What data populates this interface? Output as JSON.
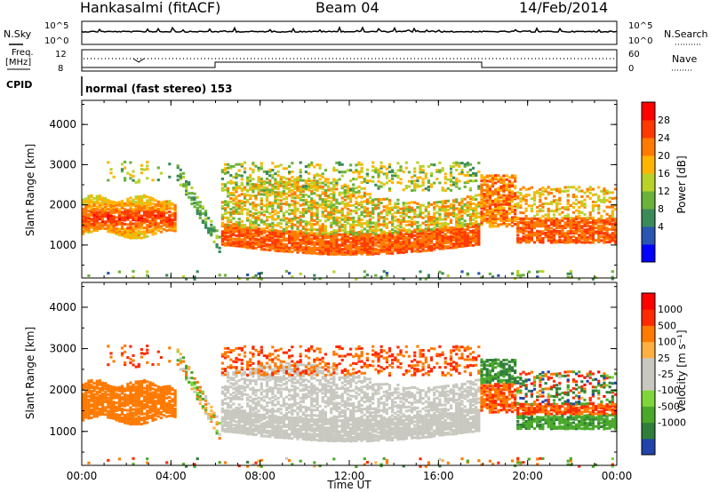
{
  "header": {
    "station": "Hankasalmi (fitACF)",
    "beam": "Beam 04",
    "date": "14/Feb/2014"
  },
  "top_panels": {
    "nsky_label": "N.Sky",
    "nsky_ticks": [
      "10^5",
      "10^0"
    ],
    "nsearch_label": "N.Search",
    "nsearch_ticks": [
      "10^5",
      "10^0"
    ],
    "freq_label_1": "Freq.",
    "freq_label_2": "[MHz]",
    "freq_ticks": [
      "12",
      "8"
    ],
    "nave_label": "Nave",
    "nave_ticks": [
      "60",
      "0"
    ],
    "cpid_label": "CPID",
    "cpid_text": "normal (fast stereo) 153"
  },
  "chart_data": [
    {
      "type": "heatmap",
      "name": "power-panel",
      "ylabel": "Slant Range [km]",
      "yticks": [
        "4000",
        "3000",
        "2000",
        "1000"
      ],
      "ylim": [
        180,
        4600
      ],
      "xticks": [
        "00:00",
        "04:00",
        "08:00",
        "12:00",
        "16:00",
        "20:00",
        "00:00"
      ],
      "xlim_hours": [
        0,
        24
      ],
      "colorbar_label": "Power [dB]",
      "colorbar_ticks": [
        "28",
        "24",
        "20",
        "16",
        "12",
        "8",
        "4"
      ],
      "colorbar_colors": [
        "#0000ff",
        "#2a55b0",
        "#3a8a5a",
        "#6ab23a",
        "#b8d22a",
        "#ffb400",
        "#ff7a00",
        "#ff3a00",
        "#ff0000"
      ],
      "features": [
        {
          "label": "morning F-region echoes",
          "t0": 0,
          "t1": 4.2,
          "r0": 1300,
          "r1": 2300,
          "power_db": 24
        },
        {
          "label": "dusk sloping streak",
          "t0": 4.4,
          "t1": 6.2,
          "r0": 900,
          "r1": 3000,
          "power_db": 12
        },
        {
          "label": "main band",
          "t0": 6.2,
          "t1": 17.8,
          "r0": 800,
          "r1": 3000,
          "power_db": 22
        },
        {
          "label": "evening patch",
          "t0": 17.8,
          "t1": 19.5,
          "r0": 1500,
          "r1": 2800,
          "power_db": 26
        },
        {
          "label": "late echoes",
          "t0": 19.5,
          "t1": 24,
          "r0": 1100,
          "r1": 2400,
          "power_db": 24
        }
      ]
    },
    {
      "type": "heatmap",
      "name": "velocity-panel",
      "ylabel": "Slant Range [km]",
      "yticks": [
        "4000",
        "3000",
        "2000",
        "1000"
      ],
      "ylim": [
        180,
        4600
      ],
      "xticks": [
        "00:00",
        "04:00",
        "08:00",
        "12:00",
        "16:00",
        "20:00",
        "00:00"
      ],
      "xlabel": "Time UT",
      "xlim_hours": [
        0,
        24
      ],
      "colorbar_label": "Velocity [m s⁻¹]",
      "colorbar_ticks": [
        "1000",
        "500",
        "100",
        "25",
        "-25",
        "-100",
        "-500",
        "-1000"
      ],
      "colorbar_colors": [
        "#2244aa",
        "#2f7e3a",
        "#4aa82a",
        "#7ed63a",
        "#c8c8c0",
        "#c8c8c0",
        "#ffb040",
        "#ff7a00",
        "#ff2a00",
        "#ff0000"
      ],
      "features": [
        {
          "label": "morning echoes",
          "t0": 0,
          "t1": 4.5,
          "r0": 1300,
          "r1": 2200,
          "velocity": -100
        },
        {
          "label": "ground scatter band",
          "t0": 5.5,
          "t1": 19.5,
          "r0": 800,
          "r1": 2600,
          "velocity": 0
        },
        {
          "label": "upper negative velocity",
          "t0": 6.2,
          "t1": 17.8,
          "r0": 2500,
          "r1": 3200,
          "velocity": -300
        },
        {
          "label": "evening positive velocity",
          "t0": 17.8,
          "t1": 24,
          "r0": 1300,
          "r1": 3000,
          "velocity": 300
        }
      ]
    }
  ]
}
